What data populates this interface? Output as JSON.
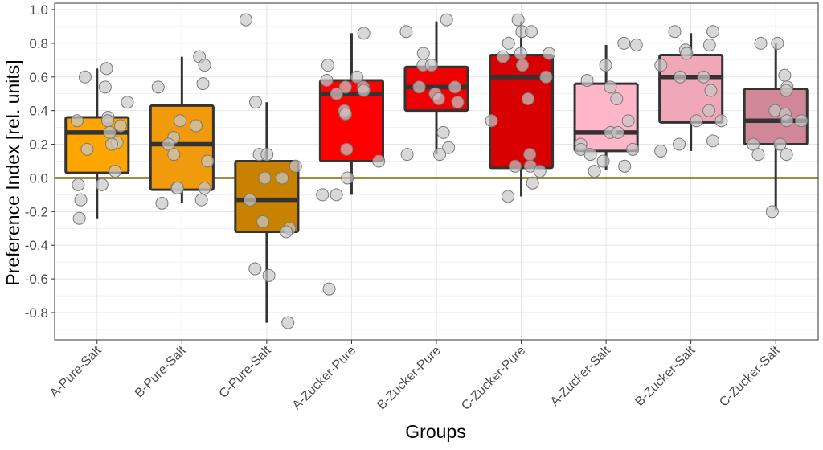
{
  "chart_data": {
    "type": "boxplot",
    "title": "",
    "xlabel": "Groups",
    "ylabel": "Preference Index [rel. units]",
    "ylim": [
      -0.95,
      1.0
    ],
    "yticks": [
      1.0,
      0.8,
      0.6,
      0.4,
      0.2,
      0.0,
      -0.2,
      -0.4,
      -0.6,
      -0.8
    ],
    "ytick_labels": [
      "1.0",
      "0.8",
      "0.6",
      "0.4",
      "0.2",
      "0.0",
      "-0.2",
      "-0.4",
      "-0.6",
      "-0.8"
    ],
    "grid": true,
    "reference_line": {
      "y": 0.0,
      "color": "#7f6a00"
    },
    "colors": {
      "box_outline": "#333333",
      "median": "#333333",
      "points_fill": "#c8c8c8",
      "points_stroke": "#7a7a7a",
      "grid": "#e5e5e5",
      "panel_border": "#333333"
    },
    "categories": [
      "A-Pure-Salt",
      "B-Pure-Salt",
      "C-Pure-Salt",
      "A-Zucker-Pure",
      "B-Zucker-Pure",
      "C-Zucker-Pure",
      "A-Zucker-Salt",
      "B-Zucker-Salt",
      "C-Zucker-Salt"
    ],
    "boxes": [
      {
        "name": "A-Pure-Salt",
        "color": "#ffa500",
        "q1": 0.03,
        "median": 0.27,
        "q3": 0.36,
        "whisker_low": -0.24,
        "whisker_high": 0.65,
        "points": [
          0.65,
          0.6,
          0.54,
          0.45,
          0.36,
          0.34,
          0.34,
          0.31,
          0.27,
          0.21,
          0.2,
          0.17,
          0.04,
          -0.04,
          -0.04,
          -0.13,
          -0.24
        ]
      },
      {
        "name": "B-Pure-Salt",
        "color": "#f09a0c",
        "q1": -0.07,
        "median": 0.2,
        "q3": 0.43,
        "whisker_low": -0.15,
        "whisker_high": 0.72,
        "points": [
          0.72,
          0.67,
          0.56,
          0.54,
          0.34,
          0.31,
          0.24,
          0.2,
          0.14,
          0.1,
          -0.06,
          -0.06,
          -0.06,
          -0.13,
          -0.15
        ]
      },
      {
        "name": "C-Pure-Salt",
        "color": "#c98100",
        "q1": -0.32,
        "median": -0.13,
        "q3": 0.1,
        "whisker_low": -0.86,
        "whisker_high": 0.45,
        "points": [
          0.94,
          0.45,
          0.14,
          0.14,
          0.07,
          0.0,
          0.0,
          -0.13,
          -0.26,
          -0.3,
          -0.32,
          -0.54,
          -0.58,
          -0.86
        ]
      },
      {
        "name": "A-Zucker-Pure",
        "color": "#ff0000",
        "q1": 0.1,
        "median": 0.5,
        "q3": 0.58,
        "whisker_low": -0.1,
        "whisker_high": 0.86,
        "points": [
          0.86,
          0.67,
          0.6,
          0.58,
          0.54,
          0.54,
          0.52,
          0.5,
          0.4,
          0.38,
          0.17,
          0.1,
          0.0,
          -0.1,
          -0.1,
          -0.66
        ]
      },
      {
        "name": "B-Zucker-Pure",
        "color": "#f00000",
        "q1": 0.4,
        "median": 0.54,
        "q3": 0.66,
        "whisker_low": 0.14,
        "whisker_high": 0.93,
        "points": [
          0.94,
          0.87,
          0.74,
          0.67,
          0.67,
          0.54,
          0.54,
          0.5,
          0.47,
          0.45,
          0.27,
          0.18,
          0.14,
          0.14
        ]
      },
      {
        "name": "C-Zucker-Pure",
        "color": "#d80000",
        "q1": 0.06,
        "median": 0.6,
        "q3": 0.73,
        "whisker_low": -0.11,
        "whisker_high": 0.93,
        "points": [
          0.94,
          0.87,
          0.87,
          0.8,
          0.74,
          0.74,
          0.72,
          0.67,
          0.6,
          0.47,
          0.34,
          0.14,
          0.07,
          0.07,
          0.04,
          -0.03,
          -0.11
        ]
      },
      {
        "name": "A-Zucker-Salt",
        "color": "#ffb6c8",
        "q1": 0.16,
        "median": 0.27,
        "q3": 0.56,
        "whisker_low": 0.05,
        "whisker_high": 0.79,
        "points": [
          0.8,
          0.79,
          0.67,
          0.58,
          0.54,
          0.47,
          0.34,
          0.27,
          0.27,
          0.2,
          0.17,
          0.17,
          0.14,
          0.1,
          0.07,
          0.04
        ]
      },
      {
        "name": "B-Zucker-Salt",
        "color": "#f0a8b8",
        "q1": 0.33,
        "median": 0.6,
        "q3": 0.73,
        "whisker_low": 0.16,
        "whisker_high": 0.86,
        "points": [
          0.87,
          0.87,
          0.79,
          0.76,
          0.74,
          0.67,
          0.6,
          0.6,
          0.52,
          0.4,
          0.34,
          0.34,
          0.22,
          0.2,
          0.16
        ]
      },
      {
        "name": "C-Zucker-Salt",
        "color": "#d08898",
        "q1": 0.2,
        "median": 0.34,
        "q3": 0.53,
        "whisker_low": -0.19,
        "whisker_high": 0.8,
        "points": [
          0.8,
          0.8,
          0.61,
          0.54,
          0.52,
          0.4,
          0.38,
          0.34,
          0.34,
          0.2,
          0.2,
          0.14,
          0.14,
          -0.2
        ]
      }
    ]
  }
}
